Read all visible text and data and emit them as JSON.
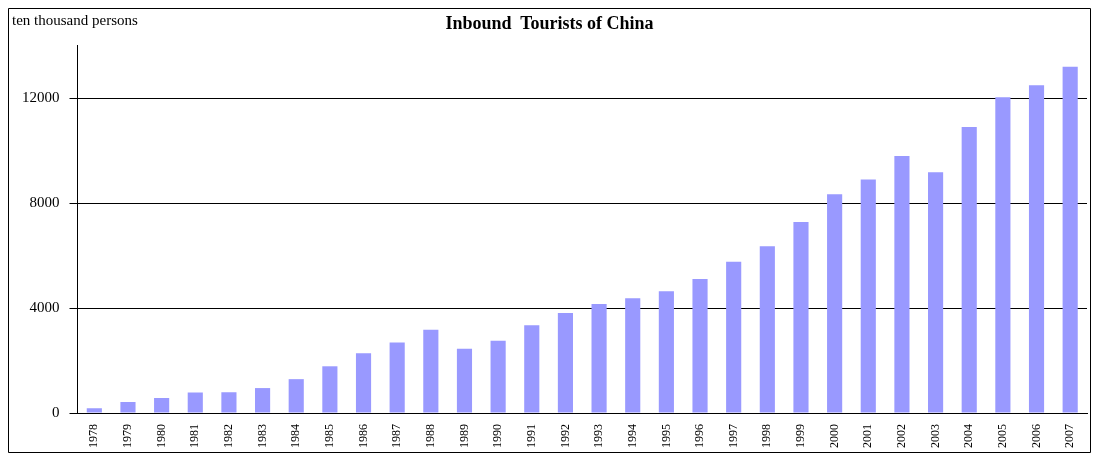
{
  "chart_data": {
    "type": "bar",
    "title": "Inbound  Tourists of China",
    "ylabel": "ten thousand persons",
    "categories": [
      "1978",
      "1979",
      "1980",
      "1981",
      "1982",
      "1983",
      "1984",
      "1985",
      "1986",
      "1987",
      "1988",
      "1989",
      "1990",
      "1991",
      "1992",
      "1993",
      "1994",
      "1995",
      "1996",
      "1997",
      "1998",
      "1999",
      "2000",
      "2001",
      "2002",
      "2003",
      "2004",
      "2005",
      "2006",
      "2007"
    ],
    "values": [
      180,
      420,
      570,
      780,
      790,
      950,
      1290,
      1780,
      2280,
      2690,
      3170,
      2450,
      2750,
      3340,
      3810,
      4150,
      4370,
      4640,
      5110,
      5760,
      6350,
      7280,
      8340,
      8900,
      9790,
      9170,
      10900,
      12030,
      12490,
      13190
    ],
    "color": "#9999ff",
    "ylim": [
      0,
      14000
    ],
    "yticks": [
      0,
      4000,
      8000,
      12000
    ],
    "grid": "y",
    "legend": false
  }
}
